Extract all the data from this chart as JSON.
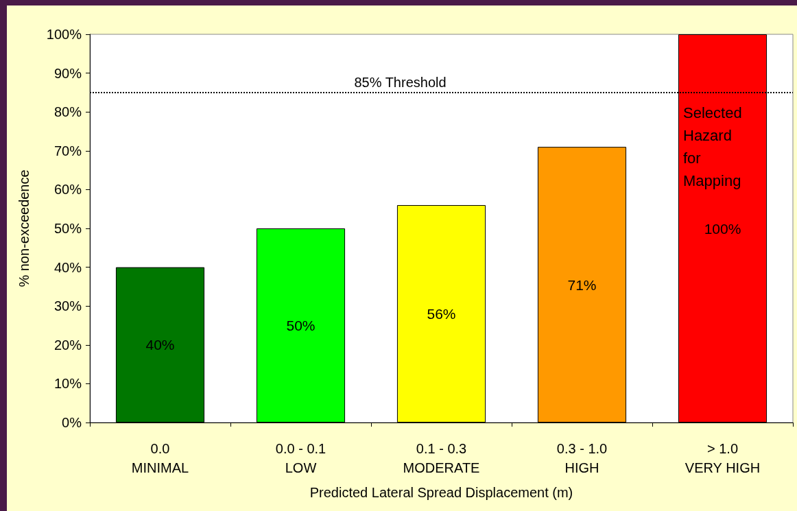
{
  "chart_data": {
    "type": "bar",
    "xlabel": "Predicted Lateral Spread Displacement (m)",
    "ylabel": "% non-exceedence",
    "categories": [
      "0.0\nMINIMAL",
      "0.0 - 0.1\nLOW",
      "0.1 - 0.3\nMODERATE",
      "0.3 - 1.0\nHIGH",
      "> 1.0\nVERY HIGH"
    ],
    "values": [
      40,
      50,
      56,
      71,
      100
    ],
    "colors": [
      "#007700",
      "#00ff00",
      "#ffff00",
      "#ff9900",
      "#ff0000"
    ],
    "value_labels": [
      "40%",
      "50%",
      "56%",
      "71%",
      "100%"
    ],
    "ylim": [
      0,
      100
    ],
    "yticks": [
      {
        "value": 0,
        "label": "0%"
      },
      {
        "value": 10,
        "label": "10%"
      },
      {
        "value": 20,
        "label": "20%"
      },
      {
        "value": 30,
        "label": "30%"
      },
      {
        "value": 40,
        "label": "40%"
      },
      {
        "value": 50,
        "label": "50%"
      },
      {
        "value": 60,
        "label": "60%"
      },
      {
        "value": 70,
        "label": "70%"
      },
      {
        "value": 80,
        "label": "80%"
      },
      {
        "value": 90,
        "label": "90%"
      },
      {
        "value": 100,
        "label": "100%"
      }
    ],
    "ref_lines": [
      {
        "axis": "y",
        "value": 85,
        "label": "85% Threshold",
        "color": "#000000",
        "line_style": "dotted"
      }
    ],
    "annotations": [
      "Selected\nHazard\nfor\nMapping"
    ],
    "grid": false
  }
}
